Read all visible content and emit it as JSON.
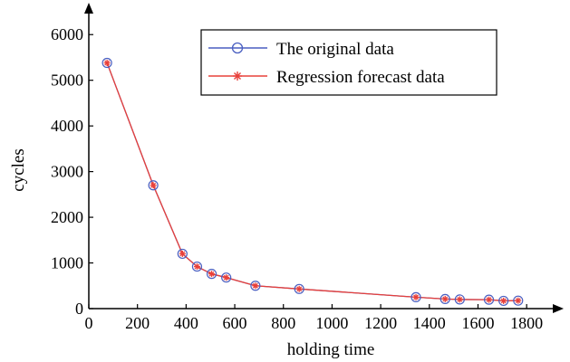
{
  "chart_data": {
    "type": "line",
    "xlabel": "holding time",
    "ylabel": "cycles",
    "xlim": [
      0,
      1900
    ],
    "ylim": [
      0,
      6500
    ],
    "xticks": [
      0,
      200,
      400,
      600,
      800,
      1000,
      1200,
      1400,
      1600,
      1800
    ],
    "yticks": [
      0,
      1000,
      2000,
      3000,
      4000,
      5000,
      6000
    ],
    "grid": false,
    "legend_position": "top-right",
    "series": [
      {
        "name": "The original data",
        "color": "#4a5fc1",
        "marker": "circle",
        "x": [
          75,
          265,
          385,
          445,
          505,
          565,
          685,
          865,
          1345,
          1465,
          1525,
          1645,
          1705,
          1765
        ],
        "y": [
          5380,
          2700,
          1200,
          920,
          760,
          680,
          500,
          430,
          250,
          210,
          200,
          195,
          170,
          175
        ]
      },
      {
        "name": "Regression forecast data",
        "color": "#e8403a",
        "marker": "asterisk",
        "x": [
          75,
          265,
          385,
          445,
          505,
          565,
          685,
          865,
          1345,
          1465,
          1525,
          1645,
          1705,
          1765
        ],
        "y": [
          5380,
          2700,
          1200,
          920,
          760,
          680,
          500,
          430,
          250,
          210,
          200,
          195,
          170,
          175
        ]
      }
    ]
  }
}
